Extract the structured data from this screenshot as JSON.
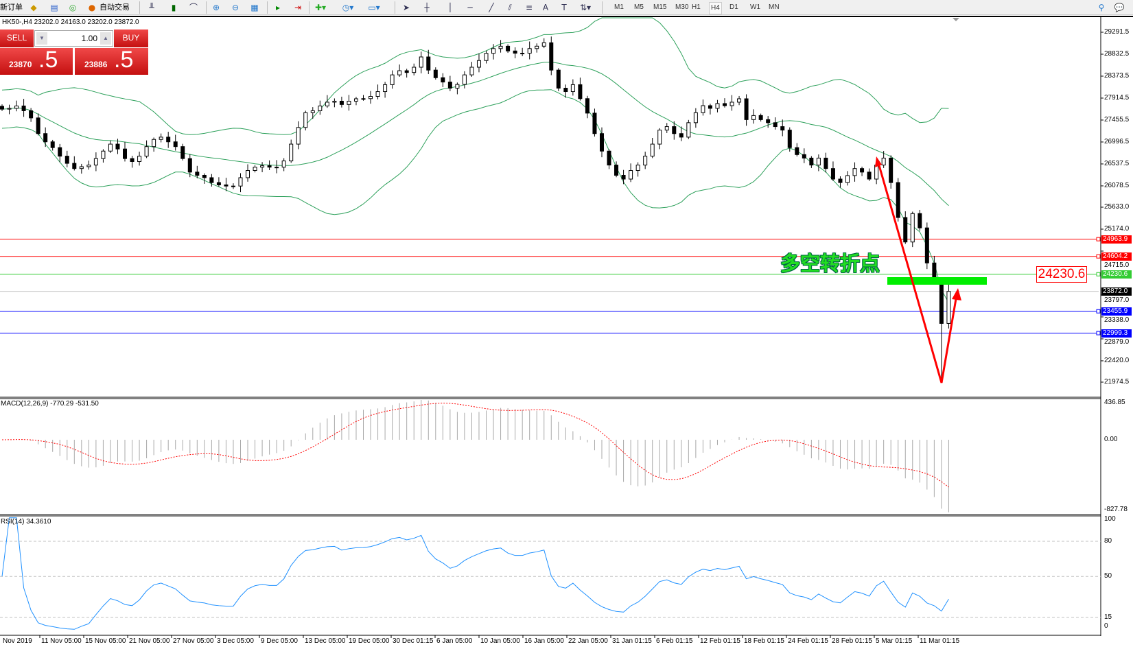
{
  "toolbar": {
    "new_order": "新订单",
    "auto_trading": "自动交易",
    "icons": [
      "new-order-icon",
      "market-watch-icon",
      "data-window-icon",
      "navigator-icon",
      "auto-trading-icon",
      "bar-chart-icon",
      "candlestick-icon",
      "line-chart-icon",
      "zoom-in-icon",
      "zoom-out-icon",
      "tile-windows-icon",
      "auto-scroll-icon",
      "chart-shift-icon",
      "indicators-icon",
      "periods-icon",
      "templates-icon",
      "cursor-icon",
      "crosshair-icon",
      "vertical-line-icon",
      "horizontal-line-icon",
      "trendline-icon",
      "channel-icon",
      "fibonacci-icon",
      "text-icon",
      "text-label-icon",
      "arrows-icon",
      "search-icon",
      "chat-icon"
    ],
    "text_tool": "A",
    "timeframes": [
      "M1",
      "M5",
      "M15",
      "M30",
      "H1",
      "H4",
      "D1",
      "W1",
      "MN"
    ],
    "selected_timeframe": "H4"
  },
  "chart": {
    "header": "HK50-,H4  23202.0 24163.0 23202.0 23872.0",
    "trade": {
      "sell": "SELL",
      "buy": "BUY",
      "lots": "1.00",
      "sell_big": "23870",
      "sell_small": ".5",
      "buy_big": "23886",
      "buy_small": ".5"
    },
    "price_ticks": [
      "29291.5",
      "28832.5",
      "28373.5",
      "27914.5",
      "27455.5",
      "26996.5",
      "26537.5",
      "26078.5",
      "25633.0",
      "25174.0",
      "24715.0",
      "23797.0",
      "23338.0",
      "22879.0",
      "22420.0",
      "21974.5"
    ],
    "levels": [
      {
        "value": "24963.9",
        "color": "#ff0000"
      },
      {
        "value": "24604.2",
        "color": "#ff0000"
      },
      {
        "value": "24230.6",
        "color": "#33cc33"
      },
      {
        "value": "23872.0",
        "color": "#000000"
      },
      {
        "value": "23455.9",
        "color": "#0000ff"
      },
      {
        "value": "22999.3",
        "color": "#0000ff"
      }
    ],
    "annotation": "多空转折点",
    "price_box": "24230.6",
    "closes": [
      27683,
      27700,
      27750,
      27650,
      27500,
      27172,
      27000,
      26879,
      26700,
      26550,
      26441,
      26480,
      26514,
      26650,
      26806,
      26952,
      26850,
      26650,
      26587,
      26700,
      26900,
      27050,
      27098,
      27000,
      26900,
      26650,
      26367,
      26300,
      26250,
      26148,
      26100,
      26075,
      26075,
      26250,
      26400,
      26470,
      26500,
      26470,
      26470,
      26600,
      26952,
      27300,
      27610,
      27650,
      27750,
      27829,
      27850,
      27780,
      27850,
      27900,
      27903,
      27950,
      28050,
      28195,
      28400,
      28487,
      28450,
      28560,
      28775,
      28500,
      28341,
      28250,
      28122,
      28200,
      28400,
      28560,
      28700,
      28850,
      28950,
      28999,
      28900,
      28853,
      28853,
      28950,
      29000,
      29072,
      28500,
      28122,
      28050,
      28195,
      27903,
      27600,
      27172,
      26806,
      26514,
      26300,
      26221,
      26400,
      26514,
      26700,
      26952,
      27245,
      27318,
      27172,
      27098,
      27400,
      27610,
      27756,
      27700,
      27800,
      27756,
      27829,
      27900,
      27464,
      27550,
      27464,
      27400,
      27318,
      27245,
      26879,
      26733,
      26660,
      26514,
      26660,
      26441,
      26221,
      26148,
      26294,
      26441,
      26367,
      26221,
      26514,
      26660,
      26148,
      25417,
      24905,
      25500,
      25200,
      24467,
      24101,
      23202,
      23872
    ],
    "band_color": "#2ca05a"
  },
  "macd": {
    "label": "MACD(12,26,9) -770.29 -531.50",
    "ticks": [
      "436.85",
      "0.00",
      "-827.78"
    ],
    "signal_color": "#ff0000"
  },
  "rsi": {
    "label": "RSI(14) 34.3610",
    "ticks": [
      "100",
      "80",
      "50",
      "15",
      "0"
    ],
    "color": "#1e90ff"
  },
  "time_axis": [
    "Nov 2019",
    "11 Nov 05:00",
    "15 Nov 05:00",
    "21 Nov 05:00",
    "27 Nov 05:00",
    "3 Dec 05:00",
    "9 Dec 05:00",
    "13 Dec 05:00",
    "19 Dec 05:00",
    "30 Dec 01:15",
    "6 Jan 05:00",
    "10 Jan 05:00",
    "16 Jan 05:00",
    "22 Jan 05:00",
    "31 Jan 01:15",
    "6 Feb 01:15",
    "12 Feb 01:15",
    "18 Feb 01:15",
    "24 Feb 01:15",
    "28 Feb 01:15",
    "5 Mar 01:15",
    "11 Mar 01:15"
  ]
}
